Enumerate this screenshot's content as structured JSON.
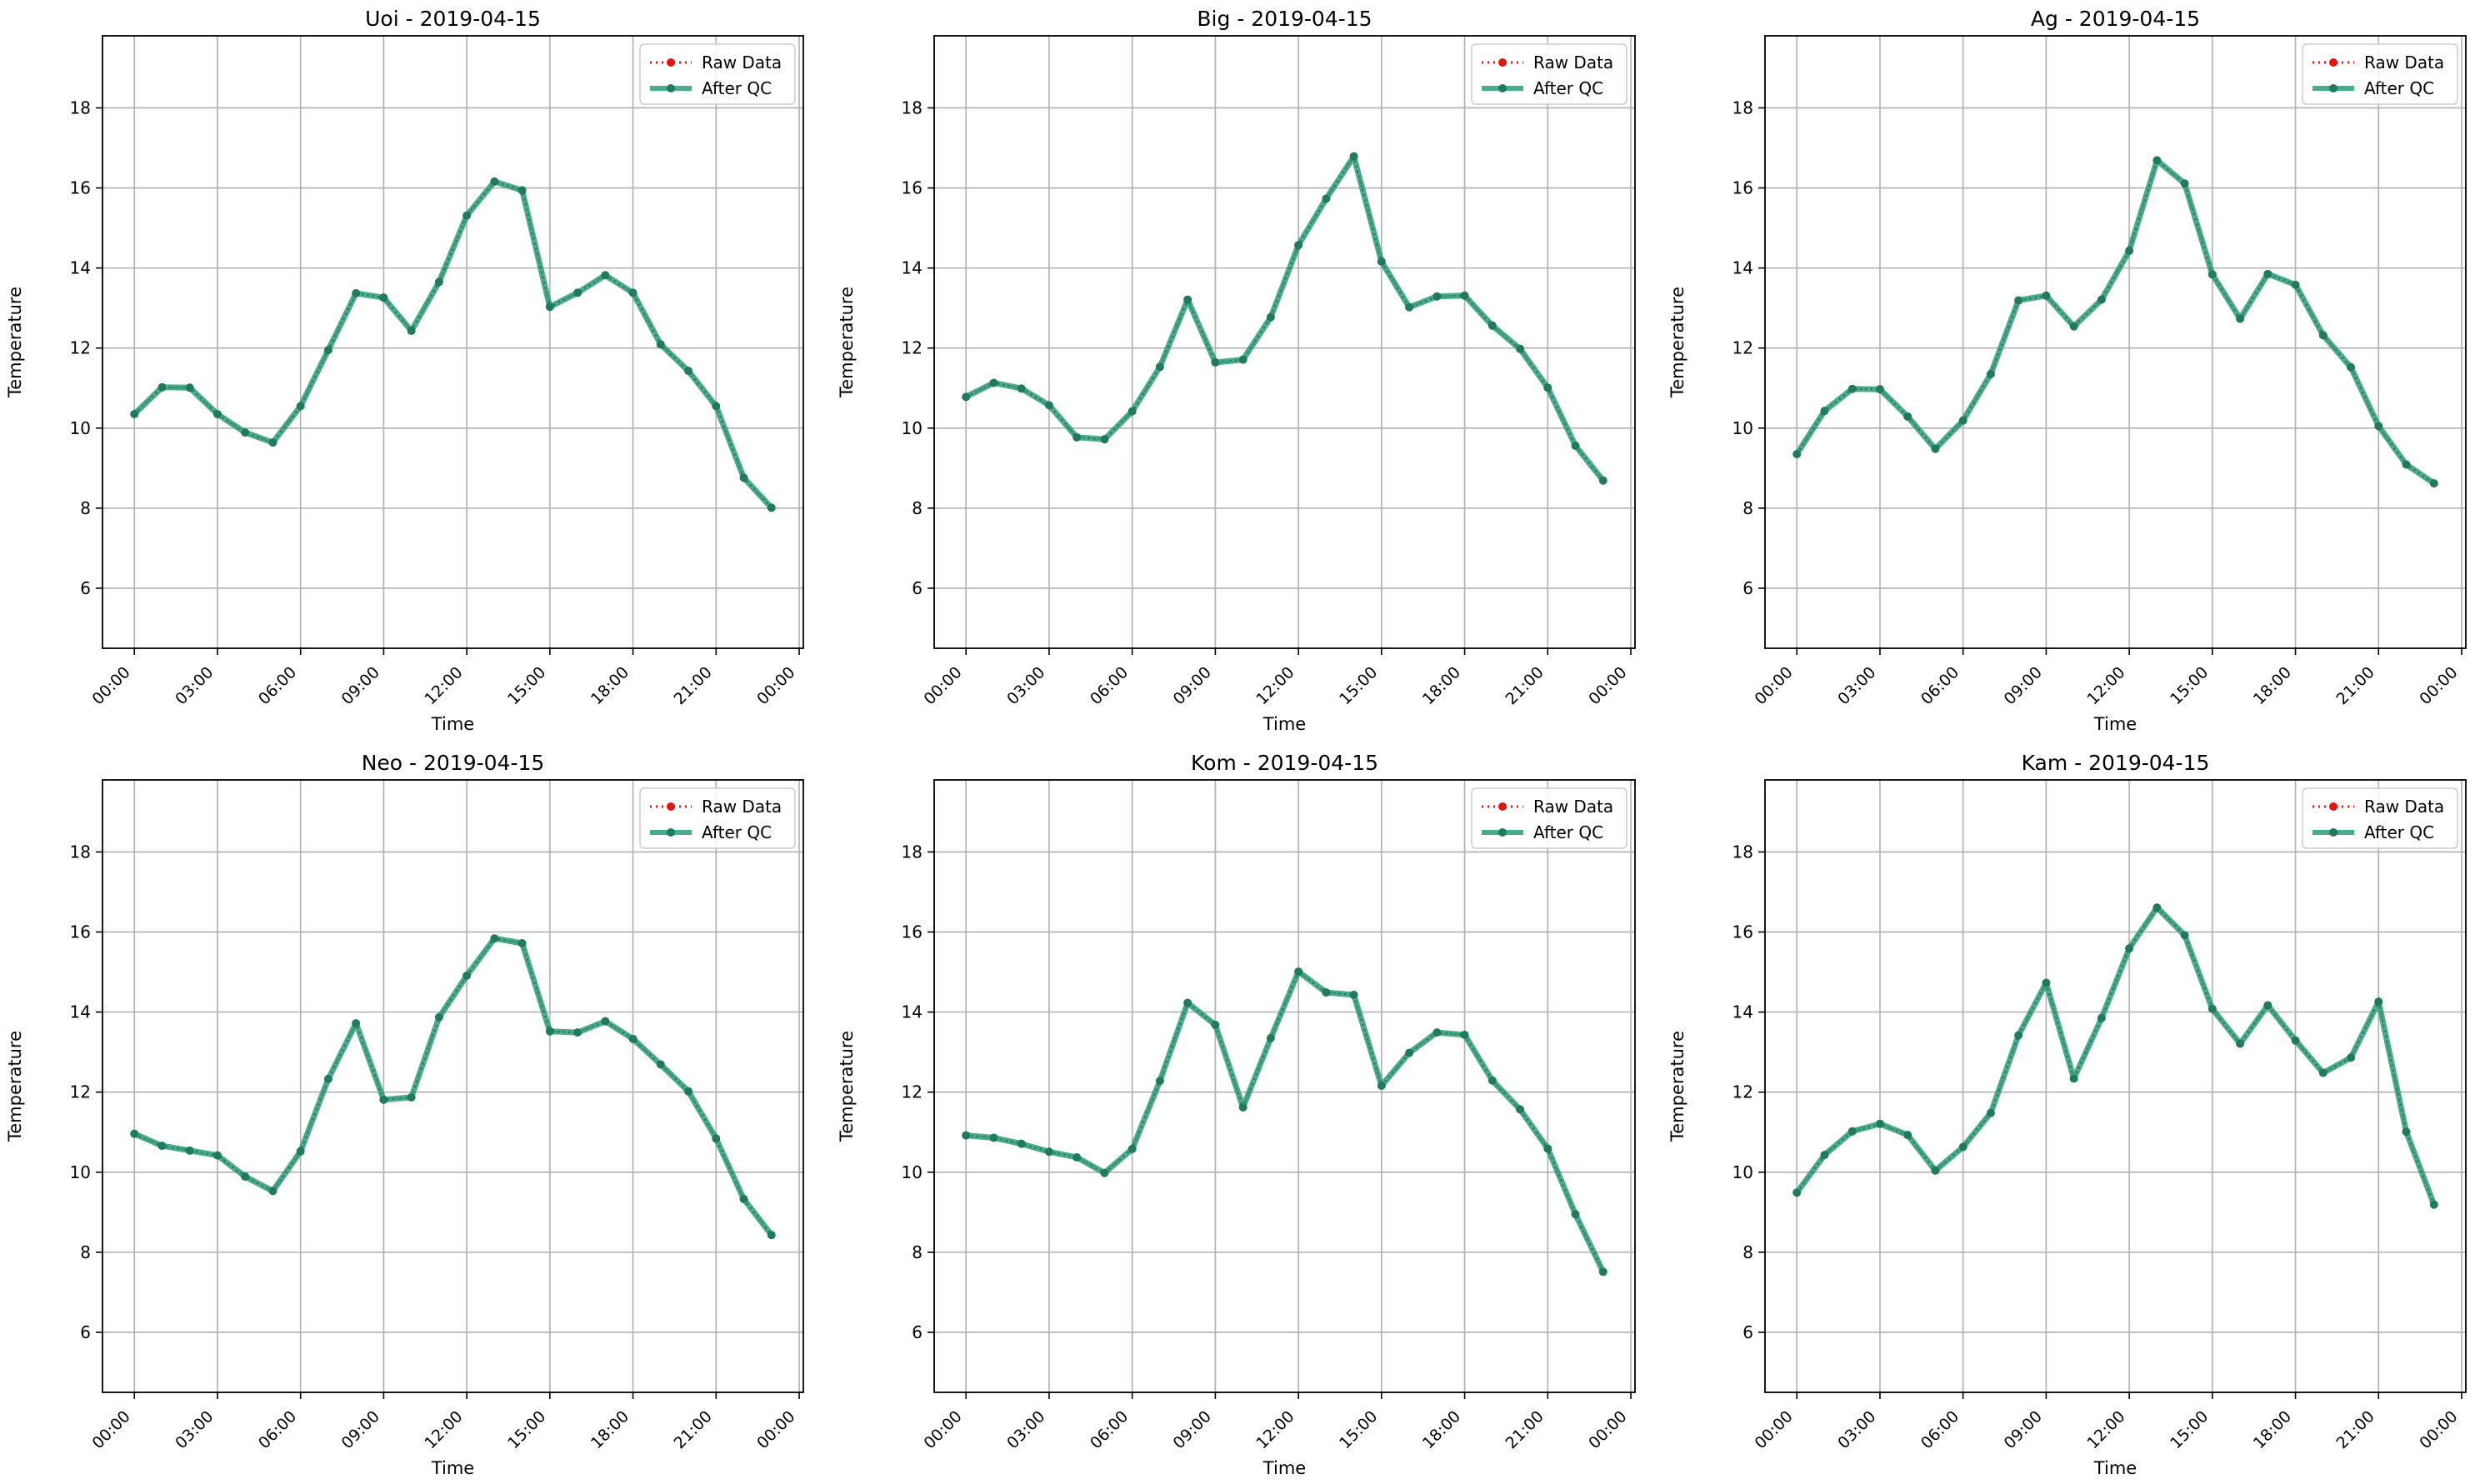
{
  "figure": {
    "legend": {
      "raw_label": "Raw Data",
      "qc_label": "After QC",
      "placement": "upper right"
    },
    "colors": {
      "raw": "#e8140c",
      "qc": "#2a9d78",
      "qc_marker": "#1f7a5e",
      "grid": "#b0b0b0",
      "axis": "#000000"
    }
  },
  "chart_data": [
    {
      "type": "line",
      "title": "Uoi - 2019-04-15",
      "xlabel": "Time",
      "ylabel": "Temperature",
      "x_ticks": [
        "00:00",
        "03:00",
        "06:00",
        "09:00",
        "12:00",
        "15:00",
        "18:00",
        "21:00",
        "00:00"
      ],
      "y_ticks": [
        6,
        8,
        10,
        12,
        14,
        16,
        18
      ],
      "xlim_hours": [
        -1.15,
        24.15
      ],
      "ylim": [
        4.5,
        19.8
      ],
      "grid": true,
      "x_hours": [
        0,
        1,
        2,
        3,
        4,
        5,
        6,
        7,
        8,
        9,
        10,
        11,
        12,
        13,
        14,
        15,
        16,
        17,
        18,
        19,
        20,
        21,
        22,
        23
      ],
      "series": [
        {
          "name": "Raw Data",
          "values": [
            10.35,
            11.02,
            11.01,
            10.35,
            9.89,
            9.64,
            10.55,
            11.95,
            13.37,
            13.26,
            12.43,
            13.65,
            15.31,
            16.16,
            15.94,
            13.03,
            13.38,
            13.82,
            13.38,
            12.09,
            11.43,
            10.55,
            8.76,
            8.01
          ]
        },
        {
          "name": "After QC",
          "values": [
            10.35,
            11.02,
            11.01,
            10.35,
            9.89,
            9.64,
            10.55,
            11.95,
            13.37,
            13.26,
            12.43,
            13.65,
            15.31,
            16.16,
            15.94,
            13.03,
            13.38,
            13.82,
            13.38,
            12.09,
            11.43,
            10.55,
            8.76,
            8.01
          ]
        }
      ]
    },
    {
      "type": "line",
      "title": "Big - 2019-04-15",
      "xlabel": "Time",
      "ylabel": "Temperature",
      "x_ticks": [
        "00:00",
        "03:00",
        "06:00",
        "09:00",
        "12:00",
        "15:00",
        "18:00",
        "21:00",
        "00:00"
      ],
      "y_ticks": [
        6,
        8,
        10,
        12,
        14,
        16,
        18
      ],
      "xlim_hours": [
        -1.15,
        24.15
      ],
      "ylim": [
        4.5,
        19.8
      ],
      "grid": true,
      "x_hours": [
        0,
        1,
        2,
        3,
        4,
        5,
        6,
        7,
        8,
        9,
        10,
        11,
        12,
        13,
        14,
        15,
        16,
        17,
        18,
        19,
        20,
        21,
        22,
        23
      ],
      "series": [
        {
          "name": "Raw Data",
          "values": [
            10.78,
            11.13,
            10.99,
            10.57,
            9.77,
            9.72,
            10.42,
            11.53,
            13.21,
            11.64,
            11.71,
            12.77,
            14.57,
            15.73,
            16.79,
            14.16,
            13.02,
            13.29,
            13.31,
            12.56,
            11.98,
            11.01,
            9.56,
            8.69
          ]
        },
        {
          "name": "After QC",
          "values": [
            10.78,
            11.13,
            10.99,
            10.57,
            9.77,
            9.72,
            10.42,
            11.53,
            13.21,
            11.64,
            11.71,
            12.77,
            14.57,
            15.73,
            16.79,
            14.16,
            13.02,
            13.29,
            13.31,
            12.56,
            11.98,
            11.01,
            9.56,
            8.69
          ]
        }
      ]
    },
    {
      "type": "line",
      "title": "Ag - 2019-04-15",
      "xlabel": "Time",
      "ylabel": "Temperature",
      "x_ticks": [
        "00:00",
        "03:00",
        "06:00",
        "09:00",
        "12:00",
        "15:00",
        "18:00",
        "21:00",
        "00:00"
      ],
      "y_ticks": [
        6,
        8,
        10,
        12,
        14,
        16,
        18
      ],
      "xlim_hours": [
        -1.15,
        24.15
      ],
      "ylim": [
        4.5,
        19.8
      ],
      "grid": true,
      "x_hours": [
        0,
        1,
        2,
        3,
        4,
        5,
        6,
        7,
        8,
        9,
        10,
        11,
        12,
        13,
        14,
        15,
        16,
        17,
        18,
        19,
        20,
        21,
        22,
        23
      ],
      "series": [
        {
          "name": "Raw Data",
          "values": [
            9.35,
            10.43,
            10.98,
            10.97,
            10.29,
            9.48,
            10.19,
            11.35,
            13.19,
            13.31,
            12.54,
            13.21,
            14.43,
            16.69,
            16.11,
            13.84,
            12.73,
            13.85,
            13.58,
            12.32,
            11.52,
            10.05,
            9.09,
            8.62
          ]
        },
        {
          "name": "After QC",
          "values": [
            9.35,
            10.43,
            10.98,
            10.97,
            10.29,
            9.48,
            10.19,
            11.35,
            13.19,
            13.31,
            12.54,
            13.21,
            14.43,
            16.69,
            16.11,
            13.84,
            12.73,
            13.85,
            13.58,
            12.32,
            11.52,
            10.05,
            9.09,
            8.62
          ]
        }
      ]
    },
    {
      "type": "line",
      "title": "Neo - 2019-04-15",
      "xlabel": "Time",
      "ylabel": "Temperature",
      "x_ticks": [
        "00:00",
        "03:00",
        "06:00",
        "09:00",
        "12:00",
        "15:00",
        "18:00",
        "21:00",
        "00:00"
      ],
      "y_ticks": [
        6,
        8,
        10,
        12,
        14,
        16,
        18
      ],
      "xlim_hours": [
        -1.15,
        24.15
      ],
      "ylim": [
        4.5,
        19.8
      ],
      "grid": true,
      "x_hours": [
        0,
        1,
        2,
        3,
        4,
        5,
        6,
        7,
        8,
        9,
        10,
        11,
        12,
        13,
        14,
        15,
        16,
        17,
        18,
        19,
        20,
        21,
        22,
        23
      ],
      "series": [
        {
          "name": "Raw Data",
          "values": [
            10.96,
            10.66,
            10.54,
            10.42,
            9.89,
            9.53,
            10.52,
            12.33,
            13.72,
            11.81,
            11.87,
            13.87,
            14.91,
            15.84,
            15.72,
            13.52,
            13.49,
            13.77,
            13.33,
            12.69,
            12.02,
            10.84,
            9.33,
            8.43
          ]
        },
        {
          "name": "After QC",
          "values": [
            10.96,
            10.66,
            10.54,
            10.42,
            9.89,
            9.53,
            10.52,
            12.33,
            13.72,
            11.81,
            11.87,
            13.87,
            14.91,
            15.84,
            15.72,
            13.52,
            13.49,
            13.77,
            13.33,
            12.69,
            12.02,
            10.84,
            9.33,
            8.43
          ]
        }
      ]
    },
    {
      "type": "line",
      "title": "Kom - 2019-04-15",
      "xlabel": "Time",
      "ylabel": "Temperature",
      "x_ticks": [
        "00:00",
        "03:00",
        "06:00",
        "09:00",
        "12:00",
        "15:00",
        "18:00",
        "21:00",
        "00:00"
      ],
      "y_ticks": [
        6,
        8,
        10,
        12,
        14,
        16,
        18
      ],
      "xlim_hours": [
        -1.15,
        24.15
      ],
      "ylim": [
        4.5,
        19.8
      ],
      "grid": true,
      "x_hours": [
        0,
        1,
        2,
        3,
        4,
        5,
        6,
        7,
        8,
        9,
        10,
        11,
        12,
        13,
        14,
        15,
        16,
        17,
        18,
        19,
        20,
        21,
        22,
        23
      ],
      "series": [
        {
          "name": "Raw Data",
          "values": [
            10.92,
            10.86,
            10.71,
            10.51,
            10.37,
            9.98,
            10.58,
            12.28,
            14.23,
            13.68,
            11.62,
            13.35,
            15.01,
            14.49,
            14.43,
            12.16,
            12.98,
            13.49,
            13.43,
            12.29,
            11.57,
            10.59,
            8.95,
            7.51
          ]
        },
        {
          "name": "After QC",
          "values": [
            10.92,
            10.86,
            10.71,
            10.51,
            10.37,
            9.98,
            10.58,
            12.28,
            14.23,
            13.68,
            11.62,
            13.35,
            15.01,
            14.49,
            14.43,
            12.16,
            12.98,
            13.49,
            13.43,
            12.29,
            11.57,
            10.59,
            8.95,
            7.51
          ]
        }
      ]
    },
    {
      "type": "line",
      "title": "Kam - 2019-04-15",
      "xlabel": "Time",
      "ylabel": "Temperature",
      "x_ticks": [
        "00:00",
        "03:00",
        "06:00",
        "09:00",
        "12:00",
        "15:00",
        "18:00",
        "21:00",
        "00:00"
      ],
      "y_ticks": [
        6,
        8,
        10,
        12,
        14,
        16,
        18
      ],
      "xlim_hours": [
        -1.15,
        24.15
      ],
      "ylim": [
        4.5,
        19.8
      ],
      "grid": true,
      "x_hours": [
        0,
        1,
        2,
        3,
        4,
        5,
        6,
        7,
        8,
        9,
        10,
        11,
        12,
        13,
        14,
        15,
        16,
        17,
        18,
        19,
        20,
        21,
        22,
        23
      ],
      "series": [
        {
          "name": "Raw Data",
          "values": [
            9.49,
            10.43,
            11.02,
            11.21,
            10.93,
            10.04,
            10.63,
            11.48,
            13.42,
            14.73,
            12.34,
            13.85,
            15.59,
            16.61,
            15.92,
            14.08,
            13.21,
            14.17,
            13.29,
            12.48,
            12.86,
            14.26,
            11.01,
            9.19
          ]
        },
        {
          "name": "After QC",
          "values": [
            9.49,
            10.43,
            11.02,
            11.21,
            10.93,
            10.04,
            10.63,
            11.48,
            13.42,
            14.73,
            12.34,
            13.85,
            15.59,
            16.61,
            15.92,
            14.08,
            13.21,
            14.17,
            13.29,
            12.48,
            12.86,
            14.26,
            11.01,
            9.19
          ]
        }
      ]
    }
  ]
}
